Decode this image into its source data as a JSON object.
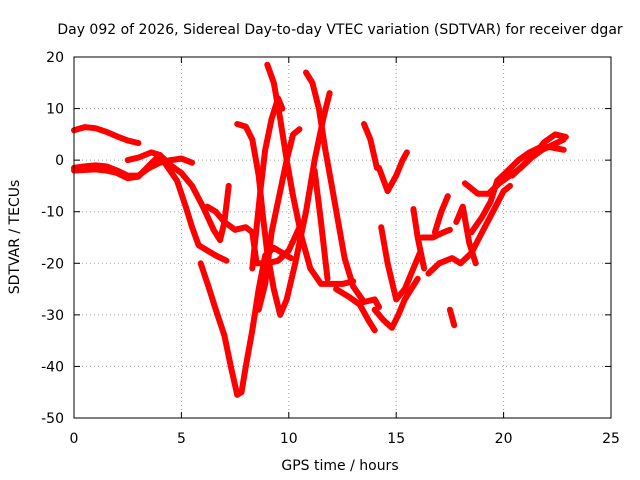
{
  "chart_data": {
    "type": "scatter",
    "title": "Day 092 of 2026, Sidereal Day-to-day VTEC variation (SDTVAR) for receiver dgar",
    "xlabel": "GPS time / hours",
    "ylabel": "SDTVAR / TECUs",
    "xlim": [
      0,
      25
    ],
    "ylim": [
      -50,
      20
    ],
    "xticks": [
      "0",
      "5",
      "10",
      "15",
      "20",
      "25"
    ],
    "yticks": [
      "-50",
      "-40",
      "-30",
      "-20",
      "-10",
      "0",
      "10",
      "20"
    ],
    "grid": true,
    "marker": "+",
    "color": "#ff0000",
    "series": [
      {
        "points": [
          [
            0.0,
            5.8
          ],
          [
            0.5,
            6.4
          ],
          [
            1.0,
            6.2
          ],
          [
            1.5,
            5.5
          ],
          [
            2.0,
            4.6
          ],
          [
            2.5,
            3.8
          ],
          [
            3.0,
            3.3
          ]
        ]
      },
      {
        "points": [
          [
            0.0,
            -1.5
          ],
          [
            0.5,
            -1.2
          ],
          [
            1.0,
            -1.0
          ],
          [
            1.5,
            -1.2
          ],
          [
            2.0,
            -2.0
          ],
          [
            2.5,
            -3.0
          ],
          [
            3.0,
            -3.0
          ],
          [
            3.5,
            -1.5
          ],
          [
            4.0,
            -0.5
          ],
          [
            4.5,
            0.0
          ],
          [
            5.0,
            0.3
          ],
          [
            5.5,
            -0.5
          ]
        ]
      },
      {
        "points": [
          [
            0.0,
            -2.0
          ],
          [
            1.0,
            -1.8
          ],
          [
            1.5,
            -2.0
          ],
          [
            2.0,
            -2.5
          ],
          [
            2.5,
            -3.5
          ],
          [
            3.0,
            -3.2
          ],
          [
            3.5,
            -1.0
          ],
          [
            4.0,
            1.0
          ],
          [
            4.3,
            -1.0
          ],
          [
            4.8,
            -4.0
          ],
          [
            5.2,
            -9.0
          ],
          [
            5.5,
            -13.0
          ],
          [
            5.8,
            -16.5
          ],
          [
            6.2,
            -17.5
          ],
          [
            6.6,
            -18.5
          ],
          [
            7.1,
            -19.5
          ]
        ]
      },
      {
        "points": [
          [
            2.5,
            0.0
          ],
          [
            3.0,
            0.5
          ],
          [
            3.6,
            1.5
          ],
          [
            4.0,
            1.0
          ],
          [
            4.5,
            -1.0
          ],
          [
            5.0,
            -2.5
          ],
          [
            5.5,
            -5.0
          ],
          [
            6.0,
            -9.0
          ],
          [
            6.5,
            -13.5
          ],
          [
            6.8,
            -15.5
          ],
          [
            7.0,
            -12.0
          ],
          [
            7.2,
            -5.0
          ]
        ]
      },
      {
        "points": [
          [
            5.9,
            -20.0
          ],
          [
            6.3,
            -25.0
          ],
          [
            6.6,
            -29.0
          ],
          [
            7.0,
            -34.0
          ],
          [
            7.3,
            -40.0
          ],
          [
            7.6,
            -45.5
          ],
          [
            7.8,
            -45.0
          ],
          [
            8.0,
            -40.0
          ],
          [
            8.3,
            -33.0
          ],
          [
            8.6,
            -25.0
          ],
          [
            8.9,
            -18.5
          ],
          [
            9.3,
            -17.0
          ],
          [
            9.7,
            -18.0
          ],
          [
            10.1,
            -19.0
          ]
        ]
      },
      {
        "points": [
          [
            6.2,
            -9.0
          ],
          [
            6.6,
            -10.0
          ],
          [
            7.0,
            -12.0
          ],
          [
            7.5,
            -13.5
          ],
          [
            8.0,
            -13.0
          ],
          [
            8.3,
            -14.0
          ],
          [
            8.5,
            -20.0
          ],
          [
            9.0,
            -20.0
          ],
          [
            9.5,
            -19.5
          ],
          [
            10.0,
            -17.5
          ],
          [
            10.5,
            -13.0
          ]
        ]
      },
      {
        "points": [
          [
            7.6,
            7.0
          ],
          [
            8.0,
            6.5
          ],
          [
            8.3,
            4.0
          ],
          [
            8.6,
            -3.0
          ],
          [
            8.8,
            -11.0
          ],
          [
            9.0,
            -18.0
          ],
          [
            9.3,
            -25.0
          ],
          [
            9.6,
            -30.0
          ],
          [
            9.9,
            -27.0
          ],
          [
            10.3,
            -20.0
          ],
          [
            10.8,
            -10.0
          ],
          [
            11.2,
            0.0
          ],
          [
            11.6,
            8.0
          ],
          [
            11.9,
            13.0
          ]
        ]
      },
      {
        "points": [
          [
            8.3,
            -21.0
          ],
          [
            8.5,
            -13.0
          ],
          [
            8.7,
            -5.0
          ],
          [
            8.9,
            2.0
          ],
          [
            9.2,
            8.0
          ],
          [
            9.5,
            12.0
          ],
          [
            9.7,
            10.0
          ]
        ]
      },
      {
        "points": [
          [
            8.6,
            -29.0
          ],
          [
            8.9,
            -24.0
          ],
          [
            9.2,
            -14.0
          ],
          [
            9.6,
            -6.0
          ],
          [
            9.9,
            0.0
          ],
          [
            10.2,
            5.0
          ],
          [
            10.5,
            6.0
          ]
        ]
      },
      {
        "points": [
          [
            9.0,
            18.5
          ],
          [
            9.3,
            15.0
          ],
          [
            9.6,
            8.0
          ],
          [
            9.9,
            0.0
          ],
          [
            10.2,
            -7.0
          ],
          [
            10.6,
            -15.0
          ],
          [
            11.0,
            -21.0
          ],
          [
            11.5,
            -24.0
          ],
          [
            12.0,
            -24.0
          ],
          [
            12.5,
            -24.0
          ],
          [
            13.0,
            -23.5
          ]
        ]
      },
      {
        "points": [
          [
            10.8,
            17.0
          ],
          [
            11.1,
            15.0
          ],
          [
            11.4,
            10.0
          ],
          [
            11.7,
            2.0
          ],
          [
            12.0,
            -5.0
          ],
          [
            12.3,
            -12.0
          ],
          [
            12.6,
            -19.0
          ],
          [
            13.0,
            -24.5
          ],
          [
            13.5,
            -27.5
          ],
          [
            14.0,
            -27.0
          ],
          [
            14.2,
            -28.5
          ]
        ]
      },
      {
        "points": [
          [
            11.2,
            -2.0
          ],
          [
            11.5,
            -12.0
          ],
          [
            11.8,
            -23.0
          ]
        ]
      },
      {
        "points": [
          [
            12.2,
            -25.0
          ],
          [
            12.8,
            -26.5
          ],
          [
            13.3,
            -28.0
          ],
          [
            13.7,
            -31.0
          ],
          [
            14.0,
            -33.0
          ]
        ]
      },
      {
        "points": [
          [
            13.5,
            7.0
          ],
          [
            13.8,
            4.0
          ],
          [
            14.1,
            -1.5
          ]
        ]
      },
      {
        "points": [
          [
            14.2,
            -1.5
          ],
          [
            14.6,
            -6.0
          ],
          [
            15.0,
            -3.0
          ],
          [
            15.3,
            0.0
          ],
          [
            15.5,
            1.5
          ]
        ]
      },
      {
        "points": [
          [
            14.3,
            -13.0
          ],
          [
            14.6,
            -20.0
          ],
          [
            15.0,
            -27.0
          ],
          [
            15.4,
            -25.0
          ],
          [
            15.8,
            -21.0
          ],
          [
            16.1,
            -18.0
          ]
        ]
      },
      {
        "points": [
          [
            14.0,
            -29.0
          ],
          [
            14.4,
            -31.0
          ],
          [
            14.8,
            -32.5
          ],
          [
            15.1,
            -30.0
          ],
          [
            15.4,
            -27.0
          ],
          [
            15.7,
            -25.0
          ],
          [
            16.0,
            -23.0
          ]
        ]
      },
      {
        "points": [
          [
            15.8,
            -9.5
          ],
          [
            16.0,
            -15.0
          ],
          [
            16.3,
            -21.0
          ]
        ]
      },
      {
        "points": [
          [
            16.2,
            -15.0
          ],
          [
            16.7,
            -15.0
          ],
          [
            17.2,
            -14.0
          ],
          [
            17.5,
            -13.5
          ]
        ]
      },
      {
        "points": [
          [
            16.5,
            -22.0
          ],
          [
            17.0,
            -20.0
          ],
          [
            17.6,
            -19.0
          ],
          [
            18.0,
            -20.0
          ],
          [
            18.5,
            -18.0
          ],
          [
            19.0,
            -14.0
          ],
          [
            19.5,
            -10.0
          ],
          [
            20.0,
            -6.0
          ],
          [
            20.3,
            -5.0
          ]
        ]
      },
      {
        "points": [
          [
            16.8,
            -14.0
          ],
          [
            17.1,
            -10.0
          ],
          [
            17.4,
            -7.0
          ]
        ]
      },
      {
        "points": [
          [
            17.5,
            -29.0
          ],
          [
            17.7,
            -32.0
          ]
        ]
      },
      {
        "points": [
          [
            17.8,
            -12.0
          ],
          [
            18.1,
            -9.0
          ],
          [
            18.4,
            -16.0
          ],
          [
            18.7,
            -20.0
          ]
        ]
      },
      {
        "points": [
          [
            18.2,
            -4.5
          ],
          [
            18.8,
            -6.5
          ],
          [
            19.3,
            -6.5
          ],
          [
            19.8,
            -4.5
          ],
          [
            20.3,
            -3.0
          ],
          [
            20.8,
            -1.5
          ],
          [
            21.3,
            0.5
          ],
          [
            21.8,
            2.0
          ],
          [
            22.3,
            3.0
          ],
          [
            22.8,
            4.0
          ]
        ]
      },
      {
        "points": [
          [
            18.5,
            -14.0
          ],
          [
            19.0,
            -11.0
          ],
          [
            19.4,
            -8.0
          ],
          [
            19.7,
            -4.0
          ],
          [
            20.2,
            -2.0
          ],
          [
            20.7,
            0.0
          ],
          [
            21.2,
            1.5
          ],
          [
            21.7,
            2.5
          ],
          [
            22.2,
            2.5
          ],
          [
            22.8,
            2.0
          ]
        ]
      },
      {
        "points": [
          [
            20.4,
            -3.0
          ],
          [
            20.9,
            -1.0
          ],
          [
            21.4,
            1.0
          ],
          [
            21.9,
            3.5
          ],
          [
            22.4,
            5.0
          ],
          [
            22.9,
            4.5
          ]
        ]
      }
    ]
  }
}
